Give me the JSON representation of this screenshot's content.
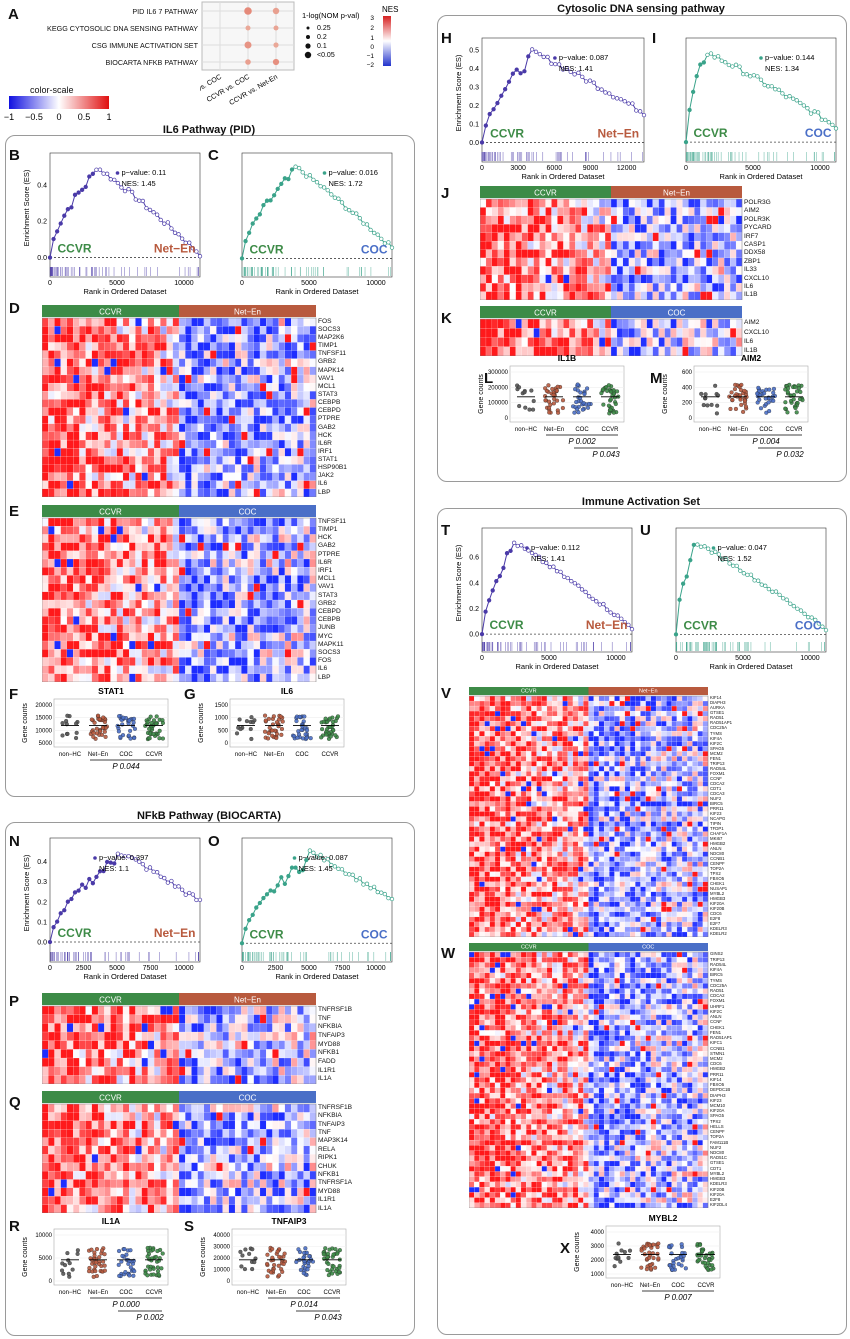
{
  "panel_labels": {
    "A": "A",
    "B": "B",
    "C": "C",
    "D": "D",
    "E": "E",
    "F": "F",
    "G": "G",
    "H": "H",
    "I": "I",
    "J": "J",
    "K": "K",
    "L": "L",
    "M": "M",
    "N": "N",
    "O": "O",
    "P": "P",
    "Q": "Q",
    "R": "R",
    "S": "S",
    "T": "T",
    "U": "U",
    "V": "V",
    "W": "W",
    "X": "X"
  },
  "section_titles": {
    "il6": "IL6 Pathway (PID)",
    "dna": "Cytosolic DNA sensing pathway",
    "imm": "Immune Activation Set",
    "nfkb": "NFkB Pathway (BIOCARTA)"
  },
  "dotplot": {
    "rows": [
      "PID IL6 7 PATHWAY",
      "KEGG CYTOSOLIC DNA SENSING PATHWAY",
      "CSG IMMUNE ACTIVATION SET",
      "BIOCARTA NFKB PATHWAY"
    ],
    "cols": [
      "Net-En vs. COC",
      "CCVR vs. COC",
      "CCVR vs. Net-En"
    ],
    "size_legend_title": "1-log(NOM p-val)",
    "size_legend": [
      "0.25",
      "0.2",
      "0.1",
      "<0.05"
    ],
    "nes_title": "NES",
    "nes_ticks": [
      "3",
      "2",
      "1",
      "0",
      "−1",
      "−2"
    ],
    "color_scale_title": "color-scale",
    "color_scale_ticks": [
      "−1",
      "−0.5",
      "0",
      "0.5",
      "1"
    ]
  },
  "axis_text": {
    "es_ylabel": "Enrichment Score (ES)",
    "rank_xlabel": "Rank in Ordered Dataset",
    "gene_counts": "Gene counts"
  },
  "group_names": {
    "ccvr": "CCVR",
    "neten": "Net−En",
    "coc": "COC",
    "nonhc": "non−HC"
  },
  "gsea": {
    "B": {
      "p": "p−value: 0.11",
      "nes": "NES: 1.45",
      "yticks": [
        "0.4",
        "0.2",
        "0.0"
      ],
      "xticks": [
        "0",
        "5000",
        "10000"
      ]
    },
    "C": {
      "p": "p−value: 0.016",
      "nes": "NES: 1.72",
      "yticks": [],
      "xticks": [
        "0",
        "5000",
        "10000"
      ]
    },
    "H": {
      "p": "p−value: 0.087",
      "nes": "NES: 1.41",
      "yticks": [
        "0.5",
        "0.4",
        "0.3",
        "0.2",
        "0.1",
        "0.0"
      ],
      "xticks": [
        "0",
        "3000",
        "6000",
        "9000",
        "12000"
      ]
    },
    "I": {
      "p": "p−value: 0.144",
      "nes": "NES: 1.34",
      "yticks": [],
      "xticks": [
        "0",
        "5000",
        "10000"
      ]
    },
    "N": {
      "p": "p−value: 0.397",
      "nes": "NES: 1.1",
      "yticks": [
        "0.4",
        "0.3",
        "0.2",
        "0.1",
        "0.0"
      ],
      "xticks": [
        "0",
        "2500",
        "5000",
        "7500",
        "10000"
      ]
    },
    "O": {
      "p": "p−value: 0.087",
      "nes": "NES: 1.45",
      "yticks": [],
      "xticks": [
        "0",
        "2500",
        "5000",
        "7500",
        "10000"
      ]
    },
    "T": {
      "p": "p−value: 0.112",
      "nes": "NES: 1.41",
      "yticks": [
        "0.6",
        "0.4",
        "0.2",
        "0.0"
      ],
      "xticks": [
        "0",
        "5000",
        "10000"
      ]
    },
    "U": {
      "p": "p−value: 0.047",
      "nes": "NES: 1.52",
      "yticks": [],
      "xticks": [
        "0",
        "5000",
        "10000"
      ]
    }
  },
  "heatmaps": {
    "D": [
      "FOS",
      "SOCS3",
      "MAP2K6",
      "TIMP1",
      "TNFSF11",
      "GRB2",
      "MAPK14",
      "VAV1",
      "MCL1",
      "STAT3",
      "CEBPB",
      "CEBPD",
      "PTPRE",
      "GAB2",
      "HCK",
      "IL6R",
      "IRF1",
      "STAT1",
      "HSP90B1",
      "JAK2",
      "IL6",
      "LBP"
    ],
    "E": [
      "TNFSF11",
      "TIMP1",
      "HCK",
      "GAB2",
      "PTPRE",
      "IL6R",
      "IRF1",
      "MCL1",
      "VAV1",
      "STAT3",
      "GRB2",
      "CEBPD",
      "CEBPB",
      "JUNB",
      "MYC",
      "MAPK11",
      "SOCS3",
      "FOS",
      "IL6",
      "LBP"
    ],
    "J": [
      "POLR3G",
      "AIM2",
      "POLR3K",
      "PYCARD",
      "IRF7",
      "CASP1",
      "DDX58",
      "ZBP1",
      "IL33",
      "CXCL10",
      "IL6",
      "IL1B"
    ],
    "K": [
      "AIM2",
      "CXCL10",
      "IL6",
      "IL1B"
    ],
    "P": [
      "TNFRSF1B",
      "TNF",
      "NFKBIA",
      "TNFAIP3",
      "MYD88",
      "NFKB1",
      "FADD",
      "IL1R1",
      "IL1A"
    ],
    "Q": [
      "TNFRSF1B",
      "NFKBIA",
      "TNFAIP3",
      "TNF",
      "MAP3K14",
      "RELA",
      "RIPK1",
      "CHUK",
      "NFKB1",
      "TNFRSF1A",
      "MYD88",
      "IL1R1",
      "IL1A"
    ],
    "V": [
      "KIF14",
      "DIAPH3",
      "AURKA",
      "GTSE1",
      "RAD51",
      "RAD51AP1",
      "CDC25A",
      "TYMS",
      "KIF4A",
      "KIF2C",
      "SPAG5",
      "MCM2",
      "FEN1",
      "TRIP13",
      "RAD54L",
      "FOXM1",
      "CCNF",
      "CDCA2",
      "CDT1",
      "CDCA3",
      "NUF2",
      "BIRC5",
      "PRR11",
      "KIF23",
      "NCAPG",
      "TIPIN",
      "TFDP1",
      "CHAF1A",
      "MKI67",
      "HMGB2",
      "ANLN",
      "NDC80",
      "CCNB1",
      "CENPF",
      "TOP2A",
      "TPX2",
      "FBXO5",
      "CHEK1",
      "NUSAP1",
      "MYBL2",
      "HMGB3",
      "KIF20A",
      "KIF20B",
      "CDC6",
      "E2F8",
      "E2F7",
      "KDELR3",
      "KDELR2"
    ],
    "W": [
      "GINS2",
      "TRIP13",
      "RAD54L",
      "KIF4A",
      "BIRC5",
      "TYMS",
      "CDC25A",
      "RAD51",
      "CDCA2",
      "FOXM1",
      "UHRF1",
      "KIF2C",
      "ANLN",
      "CCNF",
      "CHEK1",
      "FEN1",
      "RAD51AP1",
      "KIFC1",
      "CCNB1",
      "STMN1",
      "MCM2",
      "CDC6",
      "HMGB2",
      "PRR11",
      "KIF14",
      "FBXO5",
      "DEPDC1B",
      "DIAPH3",
      "KIF23",
      "MCM10",
      "KIF20A",
      "SPAG5",
      "TPX2",
      "HELLS",
      "CENPF",
      "TOP2A",
      "FAM111B",
      "NUF2",
      "NDC80",
      "RAD51C",
      "GTSE1",
      "CDT1",
      "MYBL2",
      "HMGB3",
      "KDELR3",
      "KIF20B",
      "KIF20A",
      "E2F8",
      "KIF2DL4"
    ]
  },
  "scatter": {
    "F": {
      "title": "STAT1",
      "yticks": [
        "20000",
        "15000",
        "10000",
        "5000"
      ],
      "p1": "P 0.044",
      "p2": ""
    },
    "G": {
      "title": "IL6",
      "yticks": [
        "1500",
        "1000",
        "500",
        "0"
      ],
      "p1": "",
      "p2": ""
    },
    "L": {
      "title": "IL1B",
      "yticks": [
        "300000",
        "200000",
        "100000",
        "0"
      ],
      "p1": "P 0.002",
      "p2": "P 0.043"
    },
    "M": {
      "title": "AIM2",
      "yticks": [
        "600",
        "400",
        "200",
        "0"
      ],
      "p1": "P 0.004",
      "p2": "P 0.032"
    },
    "R": {
      "title": "IL1A",
      "yticks": [
        "10000",
        "5000",
        "0"
      ],
      "p1": "P 0.000",
      "p2": "P 0.002"
    },
    "S": {
      "title": "TNFAIP3",
      "yticks": [
        "40000",
        "30000",
        "20000",
        "10000",
        "0"
      ],
      "p1": "P 0.014",
      "p2": "P 0.043"
    },
    "X": {
      "title": "MYBL2",
      "yticks": [
        "4000",
        "3000",
        "2000",
        "1000"
      ],
      "p1": "P 0.007",
      "p2": ""
    }
  },
  "colors": {
    "ccvr": "#3d8b47",
    "neten": "#b85a3e",
    "coc": "#4a6fc7",
    "nonhc": "#555555",
    "gsea_purple": "#4a3aa8",
    "gsea_teal": "#3aa38a",
    "hm_red": "#d7191c",
    "hm_blue": "#1f3cff"
  }
}
